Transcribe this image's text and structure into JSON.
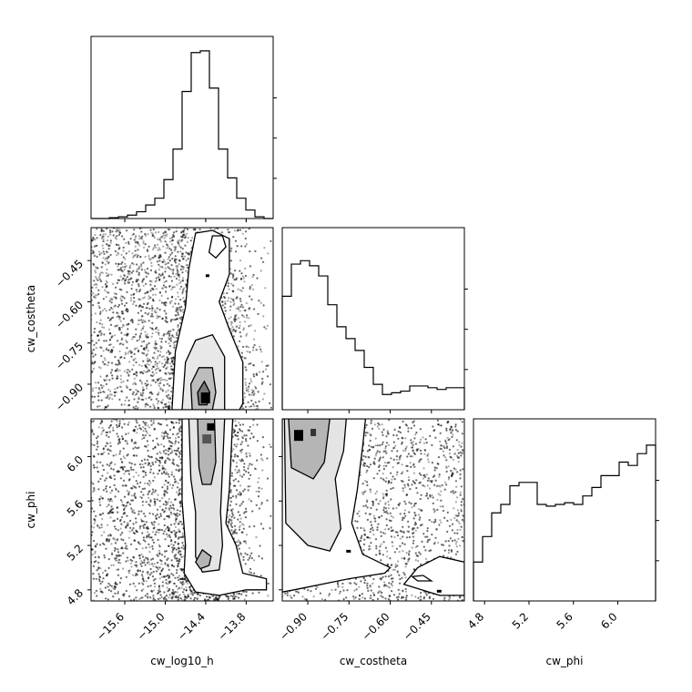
{
  "chart_data": {
    "type": "corner",
    "parameters": [
      {
        "key": "log10_h",
        "label": "cw_log10_h",
        "range": [
          -16.1,
          -13.4
        ],
        "ticks": [
          -15.6,
          -15.0,
          -14.4,
          -13.8
        ],
        "tick_labels": [
          "−15.6",
          "−15.0",
          "−14.4",
          "−13.8"
        ]
      },
      {
        "key": "costheta",
        "label": "cw_costheta",
        "range": [
          -0.993,
          -0.33
        ],
        "ticks": [
          -0.9,
          -0.75,
          -0.6,
          -0.45
        ],
        "tick_labels": [
          "−0.90",
          "−0.75",
          "−0.60",
          "−0.45"
        ]
      },
      {
        "key": "phi",
        "label": "cw_phi",
        "range": [
          4.7,
          6.34
        ],
        "ticks": [
          4.8,
          5.2,
          5.6,
          6.0
        ],
        "tick_labels": [
          "4.8",
          "5.2",
          "5.6",
          "6.0"
        ]
      }
    ],
    "histograms": [
      {
        "parameter": "cw_log10_h",
        "bins": 20,
        "ylim": [
          0,
          1.0
        ],
        "counts": [
          0.0,
          0.0,
          0.005,
          0.01,
          0.02,
          0.04,
          0.08,
          0.12,
          0.23,
          0.41,
          0.75,
          0.98,
          0.99,
          0.77,
          0.41,
          0.24,
          0.12,
          0.05,
          0.01,
          0.0
        ]
      },
      {
        "parameter": "cw_costheta",
        "bins": 20,
        "ylim": [
          0,
          1.0
        ],
        "counts": [
          0.67,
          0.86,
          0.88,
          0.85,
          0.79,
          0.62,
          0.49,
          0.42,
          0.35,
          0.25,
          0.15,
          0.09,
          0.1,
          0.11,
          0.14,
          0.14,
          0.13,
          0.12,
          0.13,
          0.13
        ]
      },
      {
        "parameter": "cw_phi",
        "bins": 20,
        "ylim": [
          0,
          1.0
        ],
        "counts": [
          0.23,
          0.38,
          0.52,
          0.57,
          0.68,
          0.7,
          0.7,
          0.57,
          0.56,
          0.57,
          0.58,
          0.57,
          0.62,
          0.67,
          0.74,
          0.74,
          0.82,
          0.8,
          0.87,
          0.92
        ]
      }
    ],
    "scatter_2d": [
      {
        "x": "cw_log10_h",
        "y": "cw_costheta",
        "mode": {
          "x": -14.43,
          "y": -0.95
        }
      },
      {
        "x": "cw_log10_h",
        "y": "cw_phi",
        "mode": {
          "x": -14.38,
          "y": 6.28
        }
      },
      {
        "x": "cw_costheta",
        "y": "cw_phi",
        "mode": {
          "x": -0.92,
          "y": 6.12
        }
      }
    ],
    "colors": {
      "line": "#000000",
      "density": "#000000",
      "background": "#ffffff"
    }
  }
}
